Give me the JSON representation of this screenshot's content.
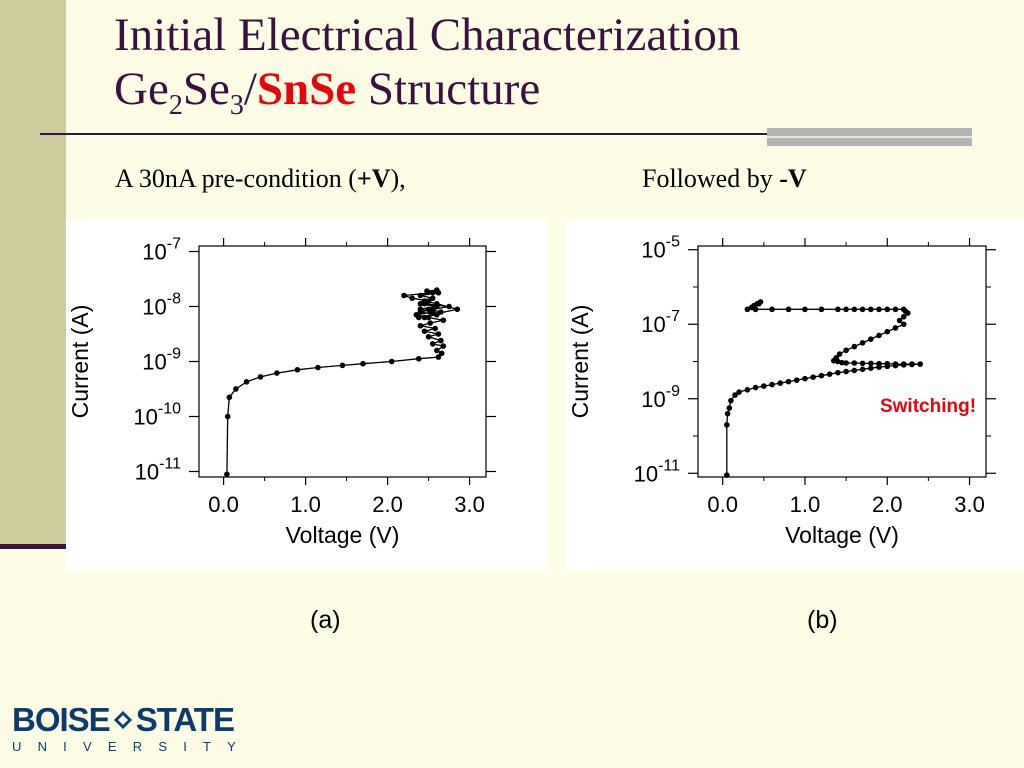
{
  "slide": {
    "title_line1": "Initial Electrical Characterization",
    "title_ge": "Ge",
    "title_sub2": "2",
    "title_se": "Se",
    "title_sub3": "3",
    "title_slash": "/",
    "title_accent": "SnSe",
    "title_rest": " Structure",
    "caption_a_pre": "A 30nA pre-condition (",
    "caption_a_bold": "+V",
    "caption_a_post": "),",
    "caption_b_pre": "Followed by ",
    "caption_b_bold": "-V",
    "label_a": "(a)",
    "label_b": "(b)",
    "accent_color": "#e8000b",
    "title_color": "#3a1240"
  },
  "logo": {
    "left": "BOISE",
    "right": "STATE",
    "sub": "UNIVERSITY",
    "color": "#0d3b6e"
  },
  "chart_data": [
    {
      "type": "line",
      "panel": "a",
      "xlabel": "Voltage (V)",
      "ylabel": "Current (A)",
      "xlim": [
        -0.3,
        3.2
      ],
      "xticks": [
        "0.0",
        "1.0",
        "2.0",
        "3.0"
      ],
      "xtick_values": [
        0,
        1,
        2,
        3
      ],
      "yscale": "log",
      "ylim_exp": [
        -11.1,
        -6.9
      ],
      "ytick_exponents": [
        -7,
        -8,
        -9,
        -10,
        -11
      ],
      "ytick_base": "10",
      "marker": "dot",
      "series": [
        {
          "x": [
            0.04,
            0.05,
            0.07,
            0.15,
            0.28,
            0.45,
            0.65,
            0.9,
            1.15,
            1.45,
            1.7,
            2.05,
            2.38,
            2.62,
            2.66,
            2.6,
            2.68,
            2.55,
            2.65,
            2.5,
            2.62,
            2.45,
            2.58,
            2.4,
            2.52,
            2.68,
            2.5,
            2.35,
            2.55,
            2.4,
            2.58,
            2.45,
            2.75,
            2.55,
            2.4,
            2.6,
            2.38,
            2.85,
            2.6,
            2.45,
            2.55,
            2.4,
            2.62,
            2.48,
            2.6,
            2.55,
            2.2,
            2.3,
            2.5,
            2.4,
            2.6,
            2.5,
            2.65,
            2.45
          ],
          "y": [
            -11.05,
            -10.0,
            -9.65,
            -9.5,
            -9.37,
            -9.28,
            -9.21,
            -9.15,
            -9.11,
            -9.07,
            -9.04,
            -9.0,
            -8.95,
            -8.92,
            -8.85,
            -8.8,
            -8.72,
            -8.68,
            -8.62,
            -8.55,
            -8.5,
            -8.45,
            -8.4,
            -8.35,
            -8.3,
            -8.25,
            -8.2,
            -8.15,
            -8.1,
            -8.05,
            -8.0,
            -7.95,
            -8.0,
            -8.05,
            -8.1,
            -8.15,
            -8.2,
            -8.05,
            -7.95,
            -7.9,
            -7.85,
            -7.8,
            -7.75,
            -7.72,
            -7.7,
            -7.75,
            -7.8,
            -7.85,
            -7.9,
            -7.95,
            -8.0,
            -8.05,
            -8.1,
            -8.2
          ]
        }
      ]
    },
    {
      "type": "line",
      "panel": "b",
      "xlabel": "Voltage (V)",
      "ylabel": "Current (A)",
      "xlim": [
        -0.3,
        3.2
      ],
      "xticks": [
        "0.0",
        "1.0",
        "2.0",
        "3.0"
      ],
      "xtick_values": [
        0,
        1,
        2,
        3
      ],
      "yscale": "log",
      "ylim_exp": [
        -11.1,
        -4.9
      ],
      "ytick_exponents": [
        -5,
        -7,
        -9,
        -11
      ],
      "ytick_base": "10",
      "marker": "dot",
      "annotation": "Switching!",
      "series": [
        {
          "x": [
            0.05,
            0.05,
            0.06,
            0.08,
            0.1,
            0.15,
            0.2,
            0.3,
            0.4,
            0.5,
            0.6,
            0.7,
            0.8,
            0.9,
            1.0,
            1.1,
            1.2,
            1.3,
            1.4,
            1.5,
            1.6,
            1.7,
            1.8,
            1.9,
            2.0,
            2.1,
            2.2,
            2.3,
            2.4,
            2.3,
            2.2,
            2.1,
            2.0,
            1.9,
            1.8,
            1.7,
            1.6,
            1.5,
            1.45,
            1.4,
            1.35,
            1.38,
            1.42,
            1.5,
            1.6,
            1.7,
            1.8,
            1.9,
            2.0,
            2.1,
            2.2,
            2.15,
            2.2,
            2.25,
            2.22,
            2.2,
            2.1,
            2.0,
            1.9,
            1.8,
            1.7,
            1.6,
            1.5,
            1.4,
            1.2,
            1.0,
            0.8,
            0.6,
            0.4,
            0.3,
            0.35,
            0.38,
            0.42,
            0.46,
            0.44
          ],
          "y": [
            -11.05,
            -9.7,
            -9.4,
            -9.25,
            -9.05,
            -8.9,
            -8.82,
            -8.76,
            -8.7,
            -8.66,
            -8.62,
            -8.58,
            -8.54,
            -8.5,
            -8.46,
            -8.42,
            -8.38,
            -8.34,
            -8.3,
            -8.27,
            -8.24,
            -8.21,
            -8.18,
            -8.15,
            -8.13,
            -8.11,
            -8.09,
            -8.08,
            -8.07,
            -8.07,
            -8.07,
            -8.07,
            -8.06,
            -8.06,
            -8.05,
            -8.05,
            -8.04,
            -8.04,
            -8.03,
            -8.0,
            -7.98,
            -7.9,
            -7.8,
            -7.7,
            -7.6,
            -7.5,
            -7.4,
            -7.3,
            -7.2,
            -7.1,
            -7.0,
            -6.9,
            -6.8,
            -6.7,
            -6.65,
            -6.6,
            -6.6,
            -6.6,
            -6.6,
            -6.6,
            -6.6,
            -6.6,
            -6.6,
            -6.6,
            -6.6,
            -6.6,
            -6.6,
            -6.6,
            -6.6,
            -6.6,
            -6.55,
            -6.5,
            -6.45,
            -6.4,
            -6.45
          ]
        }
      ]
    }
  ]
}
